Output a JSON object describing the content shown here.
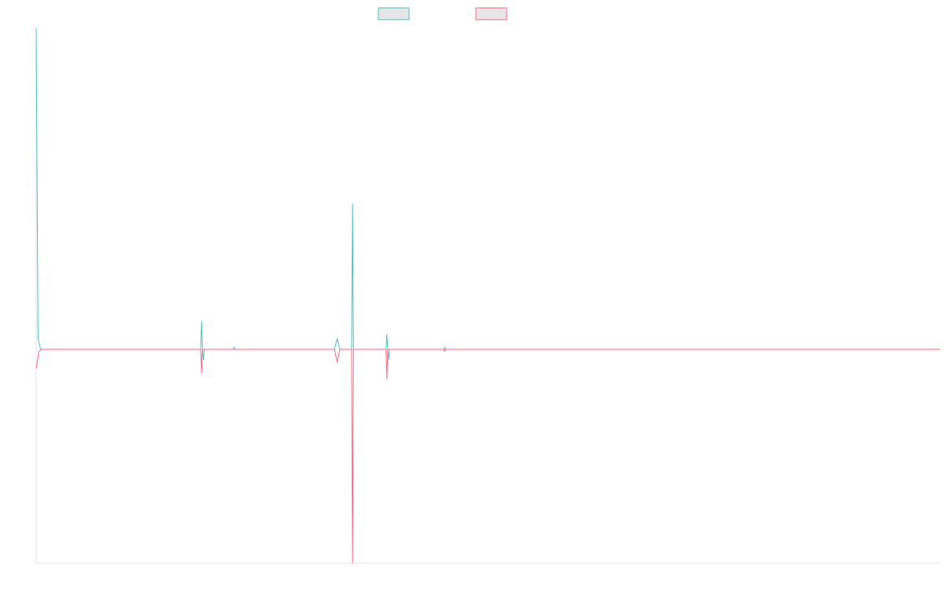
{
  "chart_data": {
    "type": "line",
    "title": "",
    "xlabel": "",
    "ylabel": "",
    "grid": false,
    "legend_position": "top-center",
    "xlim": [
      0,
      1000
    ],
    "ylim": [
      -100,
      150
    ],
    "series": [
      {
        "legend_label": "",
        "color": "#4bc0c0",
        "fill": "#e6e6e6",
        "points": [
          [
            0,
            150
          ],
          [
            2,
            5
          ],
          [
            5,
            0
          ],
          [
            10,
            0
          ],
          [
            182,
            0
          ],
          [
            183,
            13
          ],
          [
            184,
            0
          ],
          [
            185,
            -5
          ],
          [
            186,
            0
          ],
          [
            218,
            0
          ],
          [
            219,
            1
          ],
          [
            220,
            0
          ],
          [
            330,
            0
          ],
          [
            333,
            5
          ],
          [
            336,
            0
          ],
          [
            349,
            0
          ],
          [
            350,
            68
          ],
          [
            351,
            0
          ],
          [
            387,
            0
          ],
          [
            388,
            7
          ],
          [
            389,
            0
          ],
          [
            390,
            -5
          ],
          [
            391,
            0
          ],
          [
            451,
            0
          ],
          [
            452,
            1
          ],
          [
            453,
            0
          ],
          [
            1000,
            0
          ]
        ]
      },
      {
        "legend_label": "",
        "color": "#ff6384",
        "fill": "#e6e6e6",
        "points": [
          [
            0,
            -9
          ],
          [
            3,
            -1
          ],
          [
            6,
            0
          ],
          [
            10,
            0
          ],
          [
            182,
            0
          ],
          [
            183,
            -11
          ],
          [
            184,
            0
          ],
          [
            330,
            0
          ],
          [
            333,
            -6
          ],
          [
            336,
            0
          ],
          [
            349,
            0
          ],
          [
            350,
            -100
          ],
          [
            351,
            0
          ],
          [
            387,
            0
          ],
          [
            388,
            -14
          ],
          [
            389,
            0
          ],
          [
            451,
            0
          ],
          [
            452,
            -1
          ],
          [
            453,
            0
          ],
          [
            1000,
            0
          ]
        ]
      }
    ]
  }
}
